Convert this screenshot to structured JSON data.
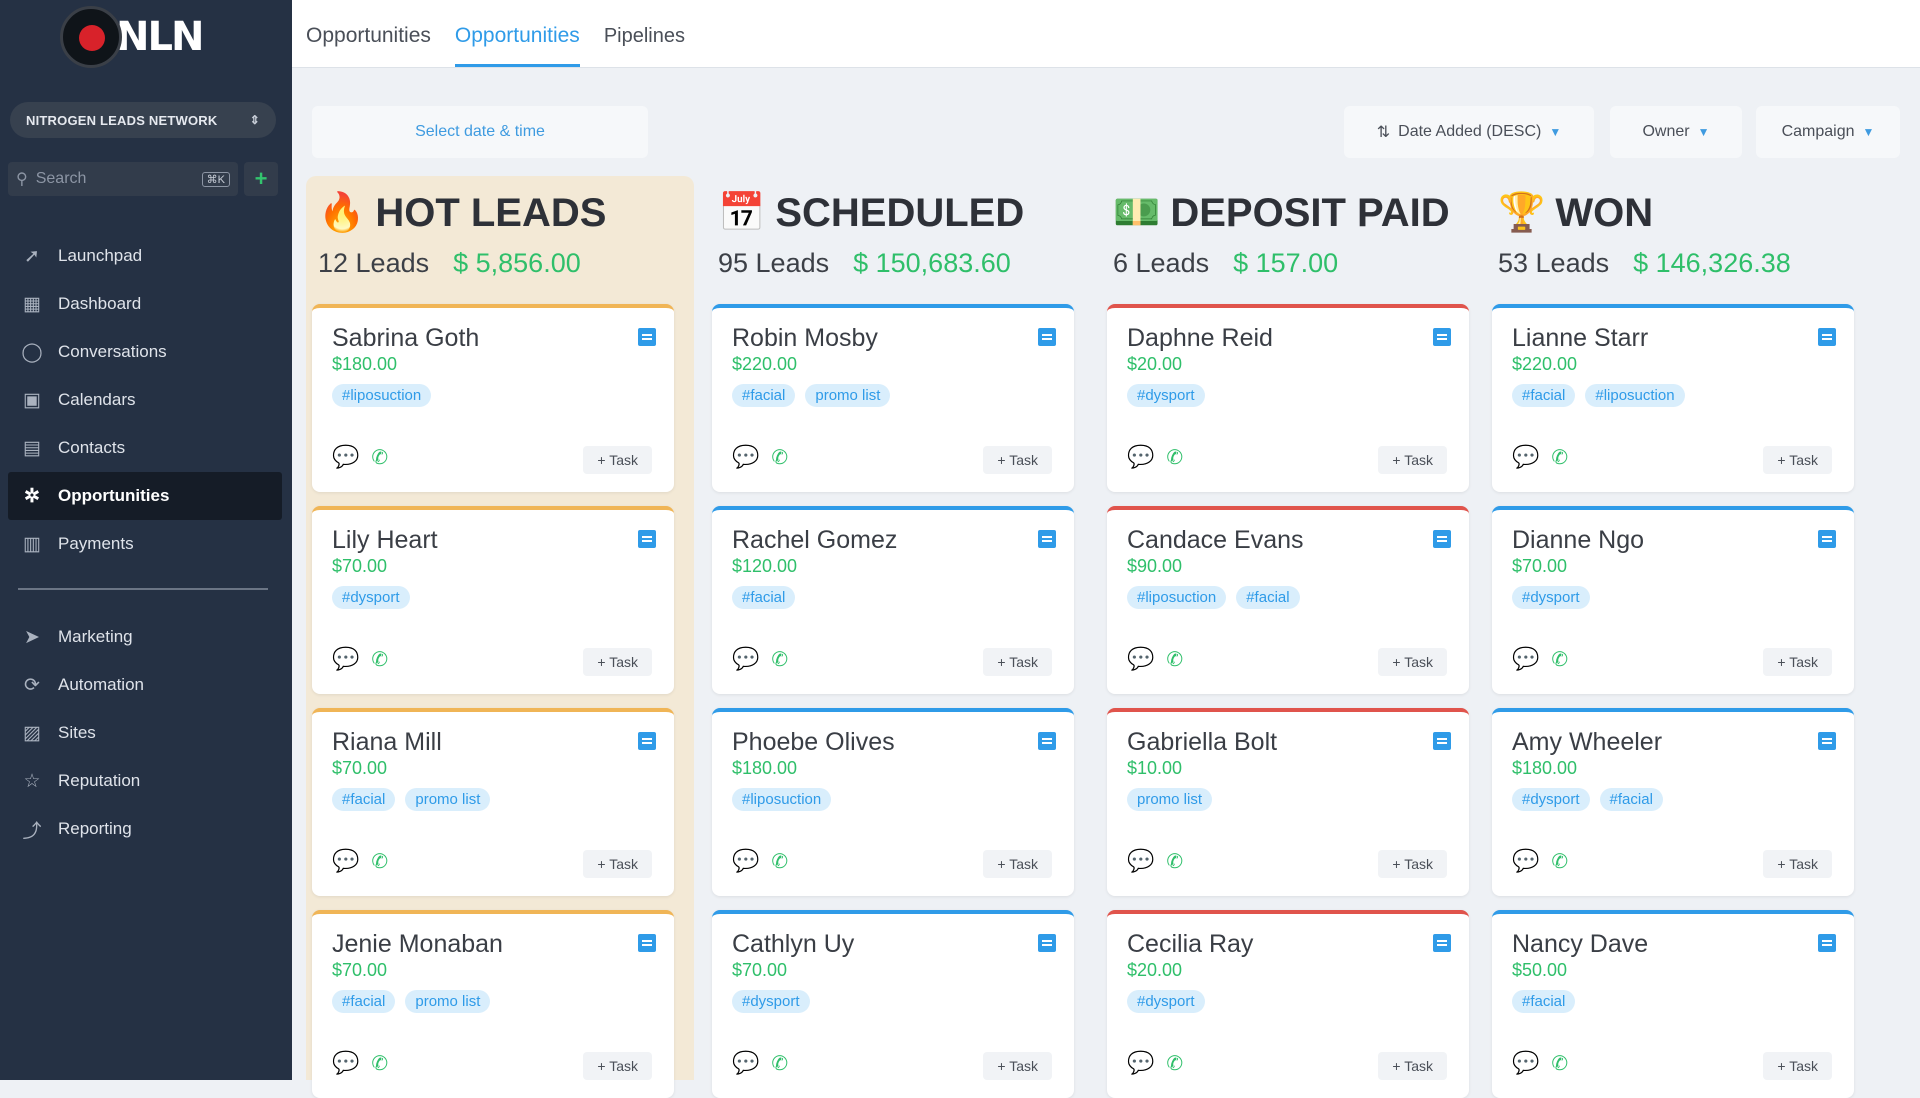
{
  "app": {
    "logo_text": "NLN",
    "account_name": "NITROGEN LEADS NETWORK",
    "search_placeholder": "Search",
    "search_shortcut": "⌘K"
  },
  "sidebar": {
    "items": [
      {
        "label": "Launchpad",
        "icon": "rocket-icon"
      },
      {
        "label": "Dashboard",
        "icon": "dashboard-icon"
      },
      {
        "label": "Conversations",
        "icon": "chat-icon"
      },
      {
        "label": "Calendars",
        "icon": "calendar-icon"
      },
      {
        "label": "Contacts",
        "icon": "contacts-icon"
      },
      {
        "label": "Opportunities",
        "icon": "opportunities-icon",
        "active": true
      },
      {
        "label": "Payments",
        "icon": "payments-icon"
      }
    ],
    "secondary_items": [
      {
        "label": "Marketing",
        "icon": "send-icon"
      },
      {
        "label": "Automation",
        "icon": "automation-icon"
      },
      {
        "label": "Sites",
        "icon": "sites-icon"
      },
      {
        "label": "Reputation",
        "icon": "star-icon"
      },
      {
        "label": "Reporting",
        "icon": "chart-icon"
      }
    ]
  },
  "topbar": {
    "tabs": [
      {
        "label": "Opportunities",
        "active": false
      },
      {
        "label": "Opportunities",
        "active": true
      },
      {
        "label": "Pipelines",
        "active": false
      }
    ]
  },
  "filters": {
    "date_placeholder": "Select date & time",
    "sort_label": "Date Added (DESC)",
    "owner_label": "Owner",
    "campaign_label": "Campaign"
  },
  "columns": [
    {
      "title": "HOT LEADS",
      "emoji": "🔥",
      "leads": "12 Leads",
      "amount": "$ 5,856.00",
      "cards": [
        {
          "name": "Sabrina Goth",
          "value": "$180.00",
          "tags": [
            "#liposuction"
          ]
        },
        {
          "name": "Lily Heart",
          "value": "$70.00",
          "tags": [
            "#dysport"
          ]
        },
        {
          "name": "Riana Mill",
          "value": "$70.00",
          "tags": [
            "#facial",
            "promo list"
          ]
        },
        {
          "name": "Jenie Monaban",
          "value": "$70.00",
          "tags": [
            "#facial",
            "promo list"
          ]
        }
      ]
    },
    {
      "title": "SCHEDULED",
      "emoji": "📅",
      "leads": "95 Leads",
      "amount": "$ 150,683.60",
      "cards": [
        {
          "name": "Robin Mosby",
          "value": "$220.00",
          "tags": [
            "#facial",
            "promo list"
          ]
        },
        {
          "name": "Rachel Gomez",
          "value": "$120.00",
          "tags": [
            "#facial"
          ]
        },
        {
          "name": "Phoebe Olives",
          "value": "$180.00",
          "tags": [
            "#liposuction"
          ]
        },
        {
          "name": "Cathlyn Uy",
          "value": "$70.00",
          "tags": [
            "#dysport"
          ]
        }
      ]
    },
    {
      "title": "DEPOSIT PAID",
      "emoji": "💵",
      "leads": "6 Leads",
      "amount": "$ 157.00",
      "cards": [
        {
          "name": "Daphne Reid",
          "value": "$20.00",
          "tags": [
            "#dysport"
          ]
        },
        {
          "name": "Candace Evans",
          "value": "$90.00",
          "tags": [
            "#liposuction",
            "#facial"
          ]
        },
        {
          "name": "Gabriella Bolt",
          "value": "$10.00",
          "tags": [
            "promo list"
          ]
        },
        {
          "name": "Cecilia Ray",
          "value": "$20.00",
          "tags": [
            "#dysport"
          ]
        }
      ]
    },
    {
      "title": "WON",
      "emoji": "🏆",
      "leads": "53 Leads",
      "amount": "$ 146,326.38",
      "cards": [
        {
          "name": "Lianne Starr",
          "value": "$220.00",
          "tags": [
            "#facial",
            "#liposuction"
          ]
        },
        {
          "name": "Dianne Ngo",
          "value": "$70.00",
          "tags": [
            "#dysport"
          ]
        },
        {
          "name": "Amy Wheeler",
          "value": "$180.00",
          "tags": [
            "#dysport",
            "#facial"
          ]
        },
        {
          "name": "Nancy Dave",
          "value": "$50.00",
          "tags": [
            "#facial"
          ]
        }
      ]
    }
  ],
  "card_common": {
    "task_label": "+ Task"
  },
  "colors": {
    "sidebar_bg": "#253144",
    "accent_blue": "#2f9be8",
    "amount_green": "#2fbf6a",
    "hot_leads_bg": "#f3e9d6",
    "hot_border": "#f0b556",
    "scheduled_border": "#2f9be8",
    "deposit_border": "#e0544c",
    "won_border": "#2f9be8"
  }
}
